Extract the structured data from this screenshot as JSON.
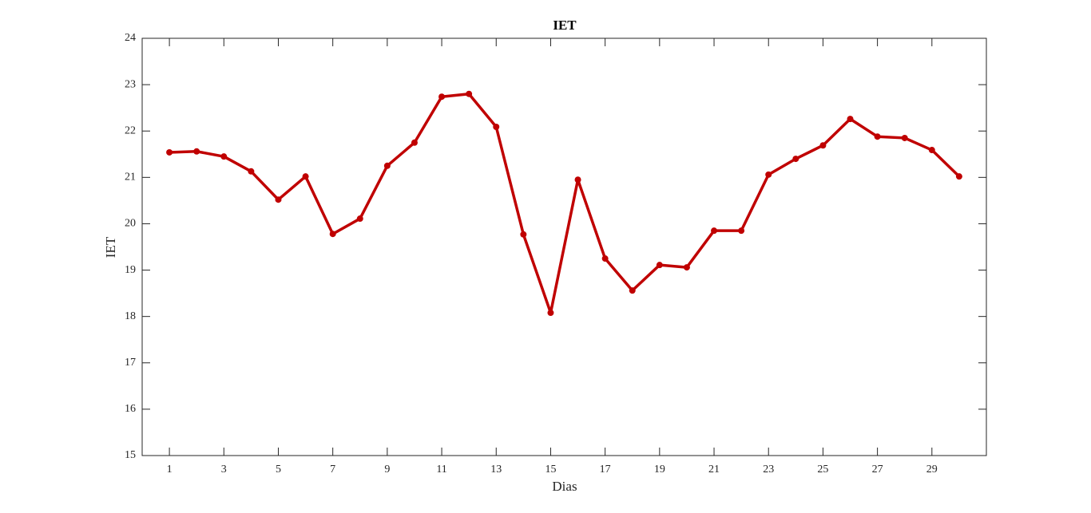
{
  "chart_data": {
    "type": "line",
    "title": "IET",
    "xlabel": "Dias",
    "ylabel": "IET",
    "x": [
      1,
      2,
      3,
      4,
      5,
      6,
      7,
      8,
      9,
      10,
      11,
      12,
      13,
      14,
      15,
      16,
      17,
      18,
      19,
      20,
      21,
      22,
      23,
      24,
      25,
      26,
      27,
      28,
      29,
      30
    ],
    "series": [
      {
        "name": "IET",
        "color": "#c00000",
        "values": [
          21.54,
          21.56,
          21.45,
          21.13,
          20.52,
          21.02,
          19.78,
          20.11,
          21.25,
          21.75,
          22.74,
          22.8,
          22.09,
          19.77,
          18.08,
          20.95,
          19.25,
          18.56,
          19.11,
          19.06,
          19.85,
          19.85,
          21.06,
          21.4,
          21.69,
          22.26,
          21.88,
          21.85,
          21.59,
          21.02
        ]
      }
    ],
    "xlim": [
      0,
      31
    ],
    "xticks": [
      1,
      3,
      5,
      7,
      9,
      11,
      13,
      15,
      17,
      19,
      21,
      23,
      25,
      27,
      29
    ],
    "ylim": [
      15,
      24
    ],
    "yticks": [
      15,
      16,
      17,
      18,
      19,
      20,
      21,
      22,
      23,
      24
    ],
    "grid": false
  }
}
